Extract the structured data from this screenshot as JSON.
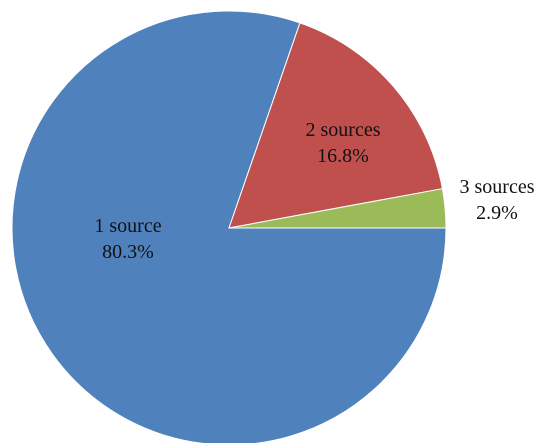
{
  "chart_data": {
    "type": "pie",
    "title": "",
    "start_angle_deg": 0,
    "direction": "clockwise",
    "legend": "none",
    "slices": [
      {
        "label": "1 source",
        "percent_label": "80.3%",
        "value": 80.3,
        "color": "#4F81BD"
      },
      {
        "label": "2 sources",
        "percent_label": "16.8%",
        "value": 16.8,
        "color": "#C0504D"
      },
      {
        "label": "3 sources",
        "percent_label": "2.9%",
        "value": 2.9,
        "color": "#9BBB59"
      }
    ]
  }
}
